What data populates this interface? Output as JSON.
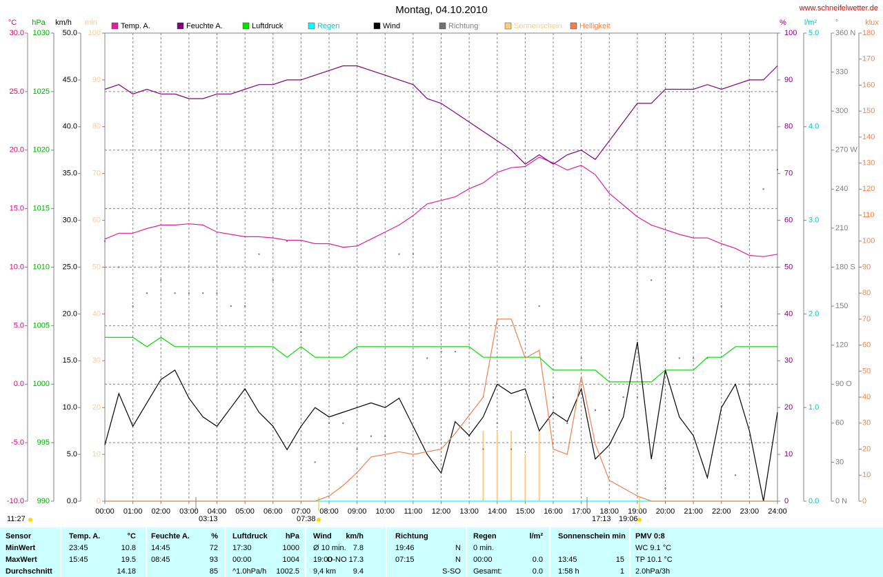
{
  "chart_data": {
    "type": "multi-axis-line",
    "title": "Montag, 04.10.2010",
    "site": "www.schneifelwetter.de",
    "xlim": [
      0,
      24
    ],
    "xticks": [
      {
        "value": 0,
        "label": "00:00"
      },
      {
        "value": 1,
        "label": "01:00"
      },
      {
        "value": 2,
        "label": "02:00"
      },
      {
        "value": 3,
        "label": "03:00"
      },
      {
        "value": 4,
        "label": "04:00"
      },
      {
        "value": 5,
        "label": "05:00"
      },
      {
        "value": 6,
        "label": "06:00"
      },
      {
        "value": 7,
        "label": "07:00"
      },
      {
        "value": 8,
        "label": "08:00"
      },
      {
        "value": 9,
        "label": "09:00"
      },
      {
        "value": 10,
        "label": "10:00"
      },
      {
        "value": 11,
        "label": "11:00"
      },
      {
        "value": 12,
        "label": "12:00"
      },
      {
        "value": 13,
        "label": "13:00"
      },
      {
        "value": 14,
        "label": "14:00"
      },
      {
        "value": 15,
        "label": "15:00"
      },
      {
        "value": 16,
        "label": "16:00"
      },
      {
        "value": 17,
        "label": "17:00"
      },
      {
        "value": 18,
        "label": "18:00"
      },
      {
        "value": 19,
        "label": "19:00"
      },
      {
        "value": 20,
        "label": "20:00"
      },
      {
        "value": 21,
        "label": "21:00"
      },
      {
        "value": 22,
        "label": "22:00"
      },
      {
        "value": 23,
        "label": "23:00"
      },
      {
        "value": 24,
        "label": "24:00"
      }
    ],
    "grid": true,
    "axes": [
      {
        "unit": "°C",
        "color": "#e0007f",
        "grid": true,
        "lim": [
          -10,
          30
        ],
        "ticks": [
          {
            "value": -10,
            "label": "-10.0"
          },
          {
            "value": -5,
            "label": "-5.0"
          },
          {
            "value": 0,
            "label": "0.0"
          },
          {
            "value": 5,
            "label": "5.0"
          },
          {
            "value": 10,
            "label": "10.0"
          },
          {
            "value": 15,
            "label": "15.0"
          },
          {
            "value": 20,
            "label": "20.0"
          },
          {
            "value": 25,
            "label": "25.0"
          },
          {
            "value": 30,
            "label": "30.0"
          }
        ]
      },
      {
        "unit": "hPa",
        "color": "#00b000",
        "lim": [
          990,
          1030
        ],
        "ticks": [
          990,
          995,
          1000,
          1005,
          1010,
          1015,
          1020,
          1025,
          1030
        ]
      },
      {
        "unit": "km/h",
        "color": "#000000",
        "lim": [
          0,
          50
        ],
        "ticks": [
          {
            "value": 0,
            "label": "0.0"
          },
          {
            "value": 5,
            "label": "5.0"
          },
          {
            "value": 10,
            "label": "10.0"
          },
          {
            "value": 15,
            "label": "15.0"
          },
          {
            "value": 20,
            "label": "20.0"
          },
          {
            "value": 25,
            "label": "25.0"
          },
          {
            "value": 30,
            "label": "30.0"
          },
          {
            "value": 35,
            "label": "35.0"
          },
          {
            "value": 40,
            "label": "40.0"
          },
          {
            "value": 45,
            "label": "45.0"
          },
          {
            "value": 50,
            "label": "50.0"
          }
        ]
      },
      {
        "unit": "min",
        "color": "#ffcc99",
        "lim": [
          0,
          100
        ],
        "ticks": [
          0,
          10,
          20,
          30,
          40,
          50,
          60,
          70,
          80,
          90,
          100
        ]
      },
      {
        "unit": "%",
        "color": "#800080",
        "lim": [
          0,
          100
        ],
        "ticks": [
          0,
          10,
          20,
          30,
          40,
          50,
          60,
          70,
          80,
          90,
          100
        ]
      },
      {
        "unit": "l/m²",
        "color": "#00c8c8",
        "lim": [
          0,
          5
        ],
        "ticks": [
          {
            "value": 0,
            "label": "0.0"
          },
          {
            "value": 1,
            "label": "1.0"
          },
          {
            "value": 2,
            "label": "2.0"
          },
          {
            "value": 3,
            "label": "3.0"
          },
          {
            "value": 4,
            "label": "4.0"
          },
          {
            "value": 5,
            "label": "5.0"
          }
        ]
      },
      {
        "unit": "°",
        "color": "#808080",
        "lim": [
          0,
          360
        ],
        "ticks": [
          {
            "value": 0,
            "label": "0 N"
          },
          30,
          60,
          {
            "value": 90,
            "label": "90 O"
          },
          120,
          150,
          {
            "value": 180,
            "label": "180 S"
          },
          210,
          240,
          {
            "value": 270,
            "label": "270 W"
          },
          300,
          330,
          {
            "value": 360,
            "label": "360 N"
          }
        ]
      },
      {
        "unit": "klux",
        "color": "#ff8040",
        "lim": [
          0,
          180
        ],
        "ticks": [
          0,
          10,
          20,
          30,
          40,
          50,
          60,
          70,
          80,
          90,
          100,
          110,
          120,
          130,
          140,
          150,
          160,
          170,
          180
        ]
      }
    ],
    "x": [
      0,
      0.5,
      1,
      1.5,
      2,
      2.5,
      3,
      3.5,
      4,
      4.5,
      5,
      5.5,
      6,
      6.5,
      7,
      7.5,
      8,
      8.5,
      9,
      9.5,
      10,
      10.5,
      11,
      11.5,
      12,
      12.5,
      13,
      13.5,
      14,
      14.5,
      15,
      15.5,
      16,
      16.5,
      17,
      17.5,
      18,
      18.5,
      19,
      19.5,
      20,
      20.5,
      21,
      21.5,
      22,
      22.5,
      23,
      23.5,
      24
    ],
    "series": [
      {
        "name": "Temp. A.",
        "color": "#e020a0",
        "label_color": "#000000",
        "axis": "°C",
        "mark": "line",
        "values": [
          12.4,
          12.9,
          12.9,
          13.3,
          13.6,
          13.6,
          13.7,
          13.6,
          13.0,
          12.8,
          12.6,
          12.6,
          12.5,
          12.3,
          12.3,
          12.0,
          12.0,
          11.7,
          11.8,
          12.4,
          13.0,
          13.6,
          14.4,
          15.4,
          15.7,
          16.0,
          16.7,
          17.2,
          18.1,
          18.5,
          18.6,
          19.4,
          18.9,
          18.3,
          18.7,
          17.9,
          16.3,
          15.3,
          14.3,
          13.6,
          13.2,
          12.8,
          12.5,
          12.5,
          12.0,
          11.6,
          11.0,
          10.9,
          11.1
        ]
      },
      {
        "name": "Feuchte A.",
        "color": "#800080",
        "label_color": "#000000",
        "axis": "%",
        "mark": "line",
        "values": [
          88,
          89,
          87,
          88,
          87,
          87,
          86,
          86,
          87,
          87,
          88,
          89,
          89,
          90,
          90,
          91,
          92,
          93,
          93,
          92,
          91,
          90,
          89,
          86,
          85,
          83,
          81,
          79,
          77,
          75,
          72,
          74,
          72,
          74,
          75,
          73,
          77,
          81,
          85,
          85,
          88,
          88,
          88,
          89,
          88,
          89,
          90,
          90,
          93
        ]
      },
      {
        "name": "Luftdruck",
        "color": "#00e000",
        "label_color": "#000000",
        "axis": "hPa",
        "mark": "line",
        "values": [
          1004,
          1004,
          1004,
          1003.2,
          1004,
          1003.2,
          1003.2,
          1003.2,
          1003.2,
          1003.2,
          1003.2,
          1003.2,
          1003.2,
          1002.3,
          1003.2,
          1002.3,
          1002.3,
          1002.3,
          1003.2,
          1003.2,
          1003.2,
          1003.2,
          1003.2,
          1003.2,
          1003.2,
          1003.2,
          1003.2,
          1002.3,
          1002.3,
          1002.3,
          1002.3,
          1002.3,
          1001.2,
          1001.2,
          1001.2,
          1001.2,
          1000.2,
          1000.2,
          1000.2,
          1000.2,
          1001.2,
          1001.2,
          1001.2,
          1002.3,
          1002.3,
          1003.2,
          1003.2,
          1003.2,
          1003.2
        ]
      },
      {
        "name": "Regen",
        "color": "#00ffff",
        "label_color": "#00d0d0",
        "axis": "l/m²",
        "mark": "line",
        "values": [
          0,
          0,
          0,
          0,
          0,
          0,
          0,
          0,
          0,
          0,
          0,
          0,
          0,
          0,
          0,
          0,
          0,
          0,
          0,
          0,
          0,
          0,
          0,
          0,
          0,
          0,
          0,
          0,
          0,
          0,
          0,
          0,
          0,
          0,
          0,
          0,
          0,
          0,
          0,
          0,
          0,
          0,
          0,
          0,
          0,
          0,
          0,
          0,
          0
        ]
      },
      {
        "name": "Wind",
        "color": "#000000",
        "label_color": "#000000",
        "axis": "km/h",
        "mark": "line",
        "values": [
          6,
          11.5,
          8,
          10.5,
          13,
          14,
          11,
          9,
          8,
          10,
          12,
          9.5,
          8,
          5.5,
          8,
          10,
          9,
          9.5,
          10,
          10.5,
          10,
          11,
          8,
          5,
          3,
          8.5,
          7,
          9,
          12.5,
          11.5,
          12,
          7.5,
          9.5,
          8.5,
          12,
          4.5,
          6,
          9,
          17,
          4.5,
          14,
          9,
          7,
          2.5,
          10,
          12.5,
          7.5,
          0,
          9.5
        ]
      },
      {
        "name": "Richtung",
        "color": "#707070",
        "label_color": "#808080",
        "axis": "°",
        "mark": "dots",
        "values": [
          200,
          180,
          150,
          160,
          170,
          160,
          160,
          160,
          160,
          150,
          150,
          190,
          170,
          200,
          130,
          30,
          60,
          60,
          40,
          50,
          50,
          190,
          190,
          110,
          115,
          115,
          50,
          40,
          60,
          40,
          80,
          150,
          80,
          60,
          110,
          70,
          70,
          80,
          80,
          170,
          10,
          110,
          110,
          110,
          150,
          20,
          90,
          240,
          255
        ]
      },
      {
        "name": "Sonnenschein",
        "color": "#ffcc80",
        "label_color": "#ffcc80",
        "axis": "min",
        "mark": "bars",
        "values": [
          0,
          0,
          0,
          0,
          0,
          0,
          0,
          0,
          0,
          0,
          0,
          0,
          0,
          0,
          0,
          0,
          0,
          0,
          0,
          0,
          0,
          0,
          0,
          0,
          0,
          0,
          0,
          15,
          15,
          15,
          10,
          15,
          0,
          0,
          0,
          0,
          0,
          0,
          0,
          0,
          0,
          0,
          0,
          0,
          0,
          0,
          0,
          0,
          0
        ]
      },
      {
        "name": "Helligkeit",
        "color": "#f08050",
        "label_color": "#ff8040",
        "axis": "klux",
        "mark": "line",
        "values": [
          0,
          0,
          0,
          0,
          0,
          0,
          0,
          0,
          0,
          0,
          0,
          0,
          0,
          0,
          0,
          0,
          2,
          6,
          11,
          17,
          18,
          19,
          18,
          19,
          20,
          26,
          33,
          40,
          70,
          70,
          55,
          58,
          20,
          18,
          48,
          22,
          8,
          5,
          2,
          0,
          0,
          0,
          0,
          0,
          0,
          0,
          0,
          0,
          0
        ]
      }
    ],
    "annotations": [
      "11:27",
      "03:13",
      "07:38",
      "17:13",
      "19:06"
    ]
  },
  "table": {
    "header": [
      "Sensor",
      "Temp. A.",
      "°C",
      "Feuchte A.",
      "%",
      "Luftdruck",
      "hPa",
      "Wind",
      "km/h",
      "Richtung",
      null,
      "Regen",
      "l/m²",
      "Sonnenschein min",
      null,
      "PMV 0:8"
    ],
    "rows": [
      [
        "MinWert",
        "23:45",
        "10.8",
        "14:45",
        "72",
        "17:30",
        "1000",
        "Ø 10 min.",
        "7.8",
        "19:46",
        "N",
        "0 min.",
        null,
        null,
        null,
        "WC 9.1 °C"
      ],
      [
        "MaxWert",
        "15:45",
        "19.5",
        "08:45",
        "93",
        "00:00",
        "1004",
        "19:00",
        "O-NO 17.3",
        "07:15",
        "N",
        "00:00",
        "0.0",
        "13:45",
        "15",
        "TP 10.1 °C"
      ],
      [
        "Durchschnitt",
        null,
        "14.18",
        null,
        "85",
        "^1.0hPa/h",
        "1002.5",
        "9,4 km",
        "9.4",
        null,
        "S-SO",
        "Gesamt:",
        "0.0",
        "1:58 h",
        "1",
        "2.0hPa/3h"
      ]
    ]
  }
}
